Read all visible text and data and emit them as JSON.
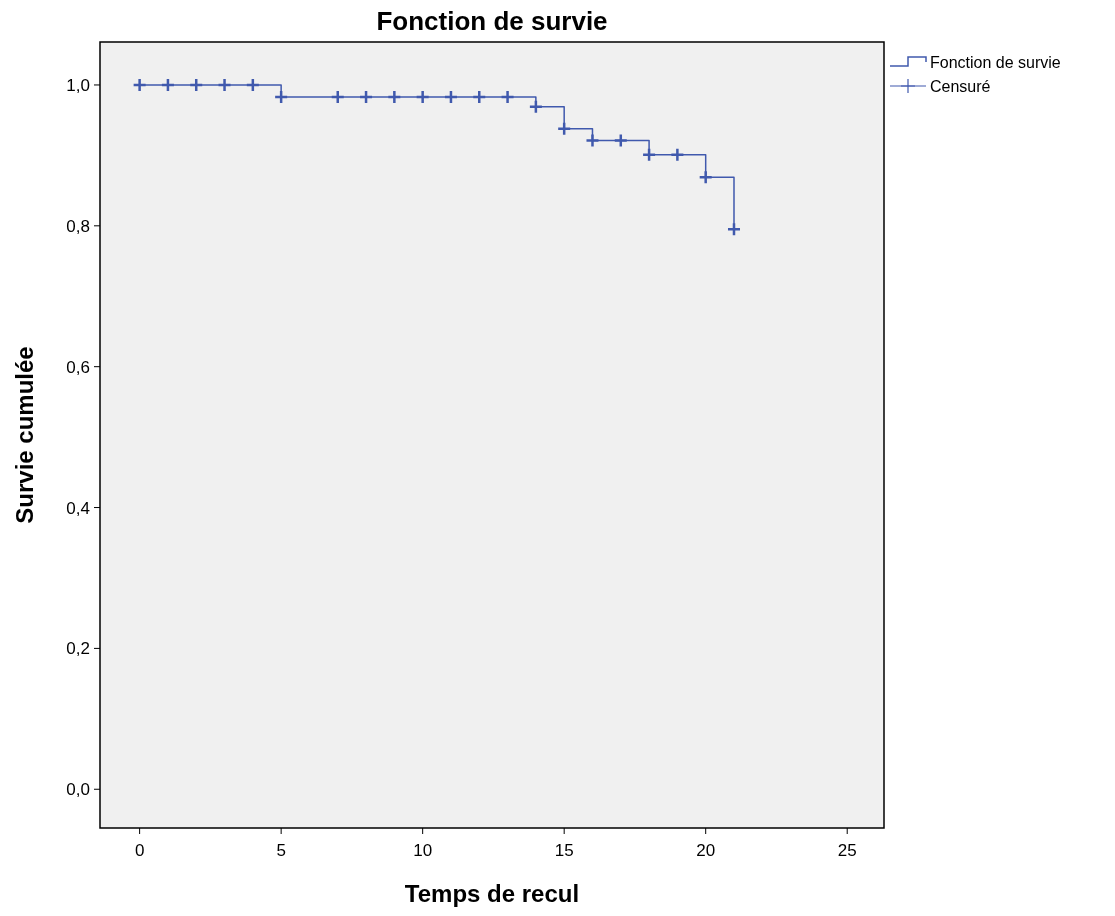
{
  "chart_data": {
    "type": "step",
    "title": "Fonction de survie",
    "xlabel": "Temps de recul",
    "ylabel": "Survie cumulée",
    "series": [
      {
        "name": "Fonction de survie",
        "color": "#4059ad",
        "x": [
          0,
          5,
          14,
          15,
          16,
          18,
          20,
          21
        ],
        "values": [
          1.0,
          0.983,
          0.969,
          0.938,
          0.921,
          0.901,
          0.869,
          0.795
        ]
      },
      {
        "name": "Censuré",
        "type": "scatter",
        "color": "#4059ad",
        "x": [
          0,
          1,
          2,
          3,
          4,
          5,
          7,
          8,
          9,
          10,
          11,
          12,
          13,
          14,
          15,
          16,
          17,
          18,
          19,
          20,
          21
        ],
        "values": [
          1.0,
          1.0,
          1.0,
          1.0,
          1.0,
          0.983,
          0.983,
          0.983,
          0.983,
          0.983,
          0.983,
          0.983,
          0.983,
          0.969,
          0.938,
          0.921,
          0.921,
          0.901,
          0.901,
          0.869,
          0.795
        ],
        "marker": "cross"
      }
    ],
    "xlim": [
      -1.4,
      26.3
    ],
    "xticks": [
      0,
      5,
      10,
      15,
      20,
      25
    ],
    "ylim": [
      -0.055,
      1.061
    ],
    "yticks": [
      {
        "value": 0,
        "label": "0,0"
      },
      {
        "value": 0.2,
        "label": "0,2"
      },
      {
        "value": 0.4,
        "label": "0,4"
      },
      {
        "value": 0.6,
        "label": "0,6"
      },
      {
        "value": 0.8,
        "label": "0,8"
      },
      {
        "value": 1,
        "label": "1,0"
      }
    ],
    "grid": false,
    "legend": "top right"
  }
}
